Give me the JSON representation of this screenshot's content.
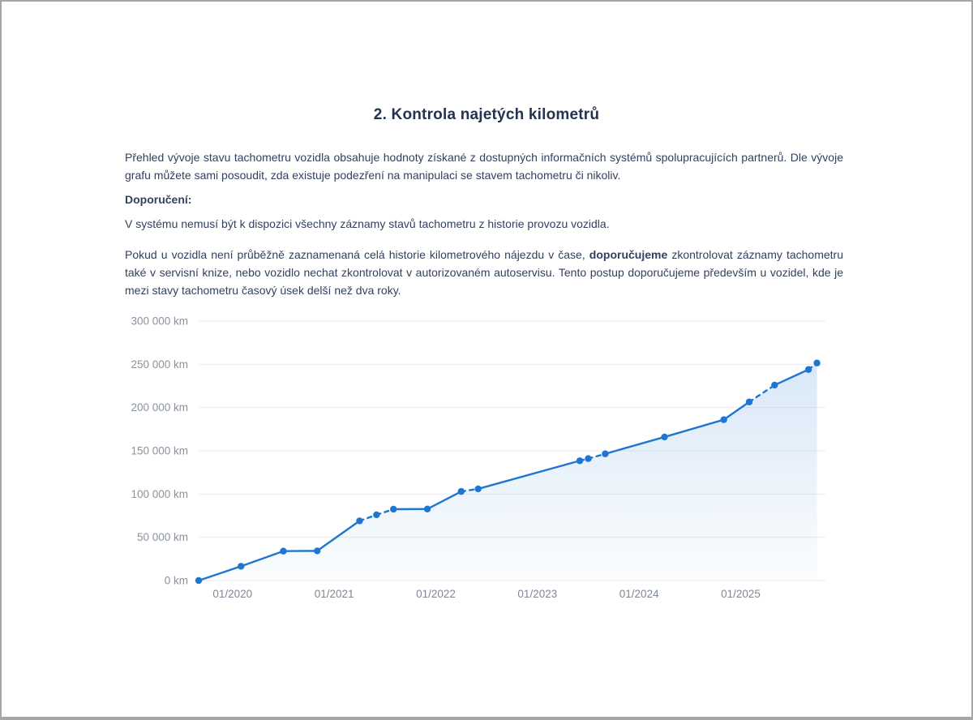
{
  "page": {
    "title": "2. Kontrola najetých kilometrů",
    "paragraphs": {
      "intro": "Přehled vývoje stavu tachometru vozidla obsahuje hodnoty získané z dostupných informačních systémů spolupracujících partnerů. Dle vývoje grafu můžete sami posoudit, zda existuje podezření na manipulaci se stavem tachometru či nikoliv.",
      "recommendation_label": "Doporučení:",
      "note": "V systému nemusí být k dispozici všechny záznamy stavů tachometru z historie provozu vozidla.",
      "advice_prefix": "Pokud u vozidla není průběžně zaznamenaná celá historie kilometrového nájezdu v čase, ",
      "advice_bold": "doporučujeme",
      "advice_suffix": " zkontrolovat záznamy tachometru také v servisní knize, nebo vozidlo nechat zkontrolovat v autorizovaném autoservisu. Tento postup doporučujeme především u vozidel, kde je mezi stavy tachometru časový úsek delší než dva roky."
    }
  },
  "chart_data": {
    "type": "line",
    "unit": "km",
    "ylim": [
      0,
      300000
    ],
    "x_domain": [
      "09/2019",
      "11/2025"
    ],
    "y_ticks": [
      {
        "value": 0,
        "label": "0 km"
      },
      {
        "value": 50000,
        "label": "50 000 km"
      },
      {
        "value": 100000,
        "label": "100 000 km"
      },
      {
        "value": 150000,
        "label": "150 000 km"
      },
      {
        "value": 200000,
        "label": "200 000 km"
      },
      {
        "value": 250000,
        "label": "250 000 km"
      },
      {
        "value": 300000,
        "label": "300 000 km"
      }
    ],
    "x_ticks": [
      "01/2020",
      "01/2021",
      "01/2022",
      "01/2023",
      "01/2024",
      "01/2025"
    ],
    "points": [
      {
        "date": "09/2019",
        "km": 0
      },
      {
        "date": "02/2020",
        "km": 16500
      },
      {
        "date": "07/2020",
        "km": 34000
      },
      {
        "date": "11/2020",
        "km": 34300
      },
      {
        "date": "04/2021",
        "km": 69000
      },
      {
        "date": "06/2021",
        "km": 76000
      },
      {
        "date": "08/2021",
        "km": 82500
      },
      {
        "date": "12/2021",
        "km": 82700
      },
      {
        "date": "04/2022",
        "km": 103000
      },
      {
        "date": "06/2022",
        "km": 106000
      },
      {
        "date": "06/2023",
        "km": 138500
      },
      {
        "date": "07/2023",
        "km": 141000
      },
      {
        "date": "09/2023",
        "km": 146500
      },
      {
        "date": "04/2024",
        "km": 166000
      },
      {
        "date": "11/2024",
        "km": 186000
      },
      {
        "date": "02/2025",
        "km": 206500
      },
      {
        "date": "05/2025",
        "km": 226000
      },
      {
        "date": "09/2025",
        "km": 244000
      },
      {
        "date": "10/2025",
        "km": 251500
      }
    ],
    "segment_styles": [
      "solid",
      "solid",
      "solid",
      "solid",
      "dashed",
      "dashed",
      "solid",
      "solid",
      "dashed",
      "solid",
      "dashed",
      "dashed",
      "solid",
      "solid",
      "solid",
      "dashed",
      "solid",
      "dashed"
    ],
    "line_color": "#1f76d0",
    "grid_color": "#ededed",
    "y_label_color": "#8a929e",
    "x_label_color": "#7e8896",
    "area_top_color": "#2b7fd4",
    "legend_position": "none",
    "grid": "horizontal-only"
  }
}
